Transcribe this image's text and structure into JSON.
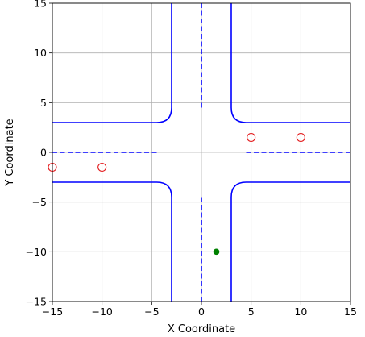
{
  "chart_data": {
    "type": "scatter",
    "title": "",
    "xlabel": "X Coordinate",
    "ylabel": "Y Coordinate",
    "xlim": [
      -15,
      15
    ],
    "ylim": [
      -15,
      15
    ],
    "xticks": [
      -15,
      -10,
      -5,
      0,
      5,
      10,
      15
    ],
    "yticks": [
      -15,
      -10,
      -5,
      0,
      5,
      10,
      15
    ],
    "xtick_labels": [
      "−15",
      "−10",
      "−5",
      "0",
      "5",
      "10",
      "15"
    ],
    "ytick_labels": [
      "−15",
      "−10",
      "−5",
      "0",
      "5",
      "10",
      "15"
    ],
    "grid": true,
    "road_color": "#0000ff",
    "road_edges": [
      {
        "kind": "solid",
        "points": [
          [
            -3,
            15
          ],
          [
            -3,
            4.5
          ]
        ],
        "corner": null
      },
      {
        "kind": "solid",
        "points": [
          [
            3,
            15
          ],
          [
            3,
            4.5
          ]
        ],
        "corner": null
      },
      {
        "kind": "solid",
        "points": [
          [
            -3,
            -15
          ],
          [
            -3,
            -4.5
          ]
        ],
        "corner": null
      },
      {
        "kind": "solid",
        "points": [
          [
            3,
            -15
          ],
          [
            3,
            -4.5
          ]
        ],
        "corner": null
      },
      {
        "kind": "solid",
        "points": [
          [
            -15,
            3
          ],
          [
            -4.5,
            3
          ]
        ],
        "corner": null
      },
      {
        "kind": "solid",
        "points": [
          [
            -15,
            -3
          ],
          [
            -4.5,
            -3
          ]
        ],
        "corner": null
      },
      {
        "kind": "solid",
        "points": [
          [
            4.5,
            3
          ],
          [
            15,
            3
          ]
        ],
        "corner": null
      },
      {
        "kind": "solid",
        "points": [
          [
            4.5,
            -3
          ],
          [
            15,
            -3
          ]
        ],
        "corner": null
      },
      {
        "kind": "corner",
        "points": [
          [
            -4.5,
            3
          ],
          [
            -3,
            4.5
          ]
        ],
        "corner": [
          -4.5,
          4.5
        ]
      },
      {
        "kind": "corner",
        "points": [
          [
            3,
            4.5
          ],
          [
            4.5,
            3
          ]
        ],
        "corner": [
          4.5,
          4.5
        ]
      },
      {
        "kind": "corner",
        "points": [
          [
            -4.5,
            -3
          ],
          [
            -3,
            -4.5
          ]
        ],
        "corner": [
          -4.5,
          -4.5
        ]
      },
      {
        "kind": "corner",
        "points": [
          [
            3,
            -4.5
          ],
          [
            4.5,
            -3
          ]
        ],
        "corner": [
          4.5,
          -4.5
        ]
      }
    ],
    "lane_markings": [
      {
        "points": [
          [
            0,
            15
          ],
          [
            0,
            4.5
          ]
        ]
      },
      {
        "points": [
          [
            0,
            -15
          ],
          [
            0,
            -4.5
          ]
        ]
      },
      {
        "points": [
          [
            -15,
            0
          ],
          [
            -4.5,
            0
          ]
        ]
      },
      {
        "points": [
          [
            4.5,
            0
          ],
          [
            15,
            0
          ]
        ]
      }
    ],
    "series": [
      {
        "marker": "open-circle",
        "color": "#e31a1c",
        "points": [
          [
            -15,
            -1.5
          ],
          [
            -10,
            -1.5
          ],
          [
            5,
            1.5
          ],
          [
            10,
            1.5
          ]
        ]
      },
      {
        "marker": "filled-circle",
        "color": "#008000",
        "points": [
          [
            1.5,
            -10
          ]
        ]
      }
    ]
  }
}
